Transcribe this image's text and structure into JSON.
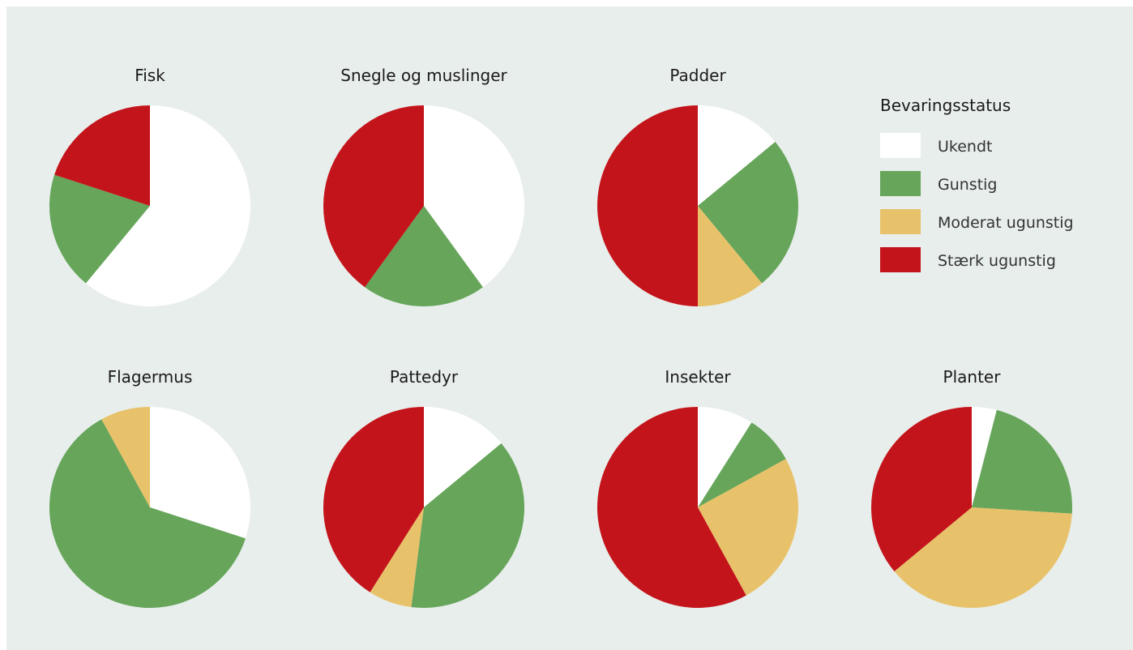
{
  "colors": {
    "background": "#e8eeeb",
    "Ukendt": "#ffffff",
    "Gunstig": "#66a55a",
    "Moderat ugunstig": "#e8c26a",
    "Stærk ugunstig": "#c4141b"
  },
  "chart_data": {
    "type": "pie",
    "legend": {
      "title": "Bevaringsstatus",
      "position": "top-right",
      "items": [
        "Ukendt",
        "Gunstig",
        "Moderat ugunstig",
        "Stærk ugunstig"
      ]
    },
    "charts": [
      {
        "title": "Fisk",
        "slices": [
          {
            "category": "Ukendt",
            "value": 61
          },
          {
            "category": "Gunstig",
            "value": 19
          },
          {
            "category": "Stærk ugunstig",
            "value": 20
          }
        ]
      },
      {
        "title": "Snegle og muslinger",
        "slices": [
          {
            "category": "Ukendt",
            "value": 40
          },
          {
            "category": "Gunstig",
            "value": 20
          },
          {
            "category": "Stærk ugunstig",
            "value": 40
          }
        ]
      },
      {
        "title": "Padder",
        "slices": [
          {
            "category": "Ukendt",
            "value": 14
          },
          {
            "category": "Gunstig",
            "value": 25
          },
          {
            "category": "Moderat ugunstig",
            "value": 11
          },
          {
            "category": "Stærk ugunstig",
            "value": 50
          }
        ]
      },
      {
        "title": "Flagermus",
        "slices": [
          {
            "category": "Ukendt",
            "value": 30
          },
          {
            "category": "Gunstig",
            "value": 62
          },
          {
            "category": "Moderat ugunstig",
            "value": 8
          }
        ]
      },
      {
        "title": "Pattedyr",
        "slices": [
          {
            "category": "Ukendt",
            "value": 14
          },
          {
            "category": "Gunstig",
            "value": 38
          },
          {
            "category": "Moderat ugunstig",
            "value": 7
          },
          {
            "category": "Stærk ugunstig",
            "value": 41
          }
        ]
      },
      {
        "title": "Insekter",
        "slices": [
          {
            "category": "Ukendt",
            "value": 9
          },
          {
            "category": "Gunstig",
            "value": 8
          },
          {
            "category": "Moderat ugunstig",
            "value": 25
          },
          {
            "category": "Stærk ugunstig",
            "value": 58
          }
        ]
      },
      {
        "title": "Planter",
        "slices": [
          {
            "category": "Ukendt",
            "value": 4
          },
          {
            "category": "Gunstig",
            "value": 22
          },
          {
            "category": "Moderat ugunstig",
            "value": 38
          },
          {
            "category": "Stærk ugunstig",
            "value": 36
          }
        ]
      }
    ]
  }
}
